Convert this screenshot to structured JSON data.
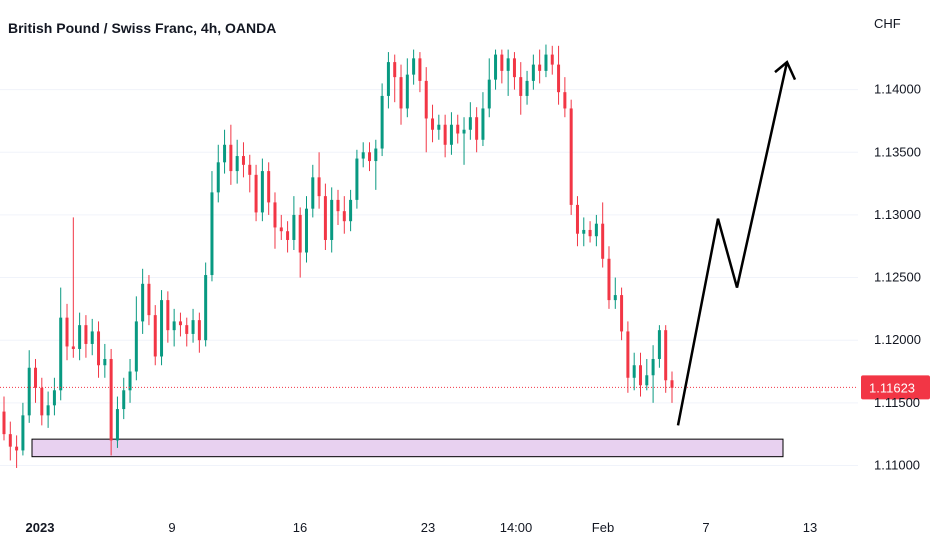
{
  "chart_data": {
    "type": "candlestick",
    "title": "British Pound / Swiss Franc, 4h, OANDA",
    "currency": "CHF",
    "ylim": [
      1.1082,
      1.1462
    ],
    "y_ticks": [
      {
        "value": 1.14,
        "label": "1.14000"
      },
      {
        "value": 1.135,
        "label": "1.13500"
      },
      {
        "value": 1.13,
        "label": "1.13000"
      },
      {
        "value": 1.125,
        "label": "1.12500"
      },
      {
        "value": 1.12,
        "label": "1.12000"
      },
      {
        "value": 1.115,
        "label": "1.11500"
      },
      {
        "value": 1.11,
        "label": "1.11000"
      }
    ],
    "x_ticks": [
      "2023",
      "9",
      "16",
      "23",
      "14:00",
      "Feb",
      "7",
      "13"
    ],
    "last_price": {
      "value": 1.11623,
      "label": "1.11623",
      "color": "#f23645"
    },
    "colors": {
      "up": "#089981",
      "down": "#f23645",
      "zone_fill": "#e8d1f0",
      "zone_stroke": "#000000",
      "arrow": "#000000"
    },
    "support_zone": {
      "low": 1.1107,
      "high": 1.1121
    },
    "projection_path": [
      1.1132,
      1.1297,
      1.1242,
      1.1422,
      1.1408
    ],
    "candles": [
      [
        1.1143,
        1.1125,
        1.1155,
        1.112
      ],
      [
        1.1125,
        1.1115,
        1.1135,
        1.1104
      ],
      [
        1.1115,
        1.1112,
        1.1124,
        1.1098
      ],
      [
        1.1112,
        1.114,
        1.115,
        1.1108
      ],
      [
        1.114,
        1.1178,
        1.1192,
        1.1134
      ],
      [
        1.1178,
        1.1162,
        1.1185,
        1.115
      ],
      [
        1.1162,
        1.114,
        1.117,
        1.1132
      ],
      [
        1.114,
        1.1148,
        1.1159,
        1.113
      ],
      [
        1.1148,
        1.116,
        1.117,
        1.114
      ],
      [
        1.116,
        1.1218,
        1.1242,
        1.1152
      ],
      [
        1.1218,
        1.1195,
        1.1229,
        1.1184
      ],
      [
        1.1195,
        1.1193,
        1.1298,
        1.1186
      ],
      [
        1.1193,
        1.1212,
        1.1222,
        1.1184
      ],
      [
        1.1212,
        1.1197,
        1.122,
        1.1186
      ],
      [
        1.1197,
        1.1207,
        1.1217,
        1.1188
      ],
      [
        1.1207,
        1.118,
        1.1215,
        1.117
      ],
      [
        1.118,
        1.1185,
        1.1197,
        1.117
      ],
      [
        1.1185,
        1.112,
        1.1193,
        1.1108
      ],
      [
        1.112,
        1.1145,
        1.1155,
        1.1114
      ],
      [
        1.1145,
        1.116,
        1.117,
        1.1137
      ],
      [
        1.116,
        1.1175,
        1.1185,
        1.115
      ],
      [
        1.1175,
        1.1215,
        1.1235,
        1.1168
      ],
      [
        1.1215,
        1.1245,
        1.1257,
        1.1205
      ],
      [
        1.1245,
        1.122,
        1.1252,
        1.1212
      ],
      [
        1.122,
        1.1187,
        1.1228,
        1.118
      ],
      [
        1.1187,
        1.1232,
        1.124,
        1.118
      ],
      [
        1.1232,
        1.1208,
        1.1239,
        1.1198
      ],
      [
        1.1208,
        1.1215,
        1.1225,
        1.1195
      ],
      [
        1.1215,
        1.1212,
        1.1222,
        1.1203
      ],
      [
        1.1212,
        1.1205,
        1.1218,
        1.1195
      ],
      [
        1.1205,
        1.1216,
        1.1225,
        1.1198
      ],
      [
        1.1216,
        1.12,
        1.1222,
        1.119
      ],
      [
        1.12,
        1.1252,
        1.1262,
        1.1195
      ],
      [
        1.1252,
        1.1318,
        1.1335,
        1.1247
      ],
      [
        1.1318,
        1.1342,
        1.1356,
        1.131
      ],
      [
        1.1342,
        1.1356,
        1.1368,
        1.1333
      ],
      [
        1.1356,
        1.1335,
        1.1372,
        1.1324
      ],
      [
        1.1335,
        1.1347,
        1.136,
        1.1325
      ],
      [
        1.1347,
        1.134,
        1.1358,
        1.133
      ],
      [
        1.134,
        1.1332,
        1.1348,
        1.1318
      ],
      [
        1.1332,
        1.1302,
        1.134,
        1.1295
      ],
      [
        1.1302,
        1.1335,
        1.1345,
        1.1295
      ],
      [
        1.1335,
        1.131,
        1.1342,
        1.13
      ],
      [
        1.131,
        1.129,
        1.1318,
        1.1273
      ],
      [
        1.129,
        1.1287,
        1.13,
        1.128
      ],
      [
        1.1287,
        1.128,
        1.1295,
        1.127
      ],
      [
        1.128,
        1.13,
        1.1315,
        1.1272
      ],
      [
        1.13,
        1.127,
        1.1306,
        1.125
      ],
      [
        1.127,
        1.1305,
        1.1315,
        1.1262
      ],
      [
        1.1305,
        1.133,
        1.134,
        1.1298
      ],
      [
        1.133,
        1.1315,
        1.135,
        1.1305
      ],
      [
        1.1315,
        1.128,
        1.1325,
        1.1272
      ],
      [
        1.128,
        1.1312,
        1.1322,
        1.127
      ],
      [
        1.1312,
        1.1303,
        1.132,
        1.1292
      ],
      [
        1.1303,
        1.1295,
        1.1315,
        1.1285
      ],
      [
        1.1295,
        1.1312,
        1.132,
        1.1287
      ],
      [
        1.1312,
        1.1345,
        1.1352,
        1.1305
      ],
      [
        1.1345,
        1.135,
        1.1358,
        1.1338
      ],
      [
        1.135,
        1.1343,
        1.1358,
        1.1335
      ],
      [
        1.1343,
        1.1353,
        1.136,
        1.132
      ],
      [
        1.1353,
        1.1395,
        1.1405,
        1.1347
      ],
      [
        1.1395,
        1.1422,
        1.143,
        1.1385
      ],
      [
        1.1422,
        1.141,
        1.1428,
        1.139
      ],
      [
        1.141,
        1.1385,
        1.142,
        1.1372
      ],
      [
        1.1385,
        1.1412,
        1.1425,
        1.1378
      ],
      [
        1.1412,
        1.1425,
        1.1432,
        1.1404
      ],
      [
        1.1425,
        1.1407,
        1.143,
        1.1398
      ],
      [
        1.1407,
        1.1377,
        1.1418,
        1.135
      ],
      [
        1.1377,
        1.1368,
        1.1388,
        1.1358
      ],
      [
        1.1368,
        1.1372,
        1.138,
        1.136
      ],
      [
        1.1372,
        1.1356,
        1.138,
        1.1346
      ],
      [
        1.1356,
        1.1372,
        1.1382,
        1.1348
      ],
      [
        1.1372,
        1.1365,
        1.138,
        1.1357
      ],
      [
        1.1365,
        1.1368,
        1.1378,
        1.134
      ],
      [
        1.1368,
        1.1378,
        1.139,
        1.136
      ],
      [
        1.1378,
        1.136,
        1.1386,
        1.135
      ],
      [
        1.136,
        1.1385,
        1.1398,
        1.1355
      ],
      [
        1.1385,
        1.1408,
        1.1425,
        1.1378
      ],
      [
        1.1408,
        1.1428,
        1.1432,
        1.14
      ],
      [
        1.1428,
        1.1415,
        1.1432,
        1.1405
      ],
      [
        1.1415,
        1.1425,
        1.1432,
        1.1395
      ],
      [
        1.1425,
        1.141,
        1.143,
        1.14
      ],
      [
        1.141,
        1.1395,
        1.1422,
        1.138
      ],
      [
        1.1395,
        1.1407,
        1.1415,
        1.1388
      ],
      [
        1.1407,
        1.142,
        1.1428,
        1.14
      ],
      [
        1.142,
        1.1415,
        1.1432,
        1.1405
      ],
      [
        1.1415,
        1.1428,
        1.1436,
        1.141
      ],
      [
        1.1428,
        1.142,
        1.1435,
        1.1412
      ],
      [
        1.142,
        1.1398,
        1.1435,
        1.1388
      ],
      [
        1.1398,
        1.1385,
        1.141,
        1.1378
      ],
      [
        1.1385,
        1.1308,
        1.1392,
        1.13
      ],
      [
        1.1308,
        1.1285,
        1.1315,
        1.1275
      ],
      [
        1.1285,
        1.1288,
        1.1298,
        1.1275
      ],
      [
        1.1288,
        1.1283,
        1.1295,
        1.1278
      ],
      [
        1.1283,
        1.1293,
        1.13,
        1.1275
      ],
      [
        1.1293,
        1.1265,
        1.131,
        1.1258
      ],
      [
        1.1265,
        1.1232,
        1.1275,
        1.1225
      ],
      [
        1.1232,
        1.1236,
        1.125,
        1.1225
      ],
      [
        1.1236,
        1.1207,
        1.1242,
        1.12
      ],
      [
        1.1207,
        1.117,
        1.1215,
        1.1158
      ],
      [
        1.117,
        1.118,
        1.119,
        1.116
      ],
      [
        1.118,
        1.1164,
        1.119,
        1.1155
      ],
      [
        1.1164,
        1.1172,
        1.1185,
        1.116
      ],
      [
        1.1172,
        1.1185,
        1.1196,
        1.115
      ],
      [
        1.1185,
        1.1208,
        1.1212,
        1.1178
      ],
      [
        1.1208,
        1.1168,
        1.1212,
        1.1158
      ],
      [
        1.1168,
        1.1162,
        1.1175,
        1.115
      ]
    ]
  }
}
